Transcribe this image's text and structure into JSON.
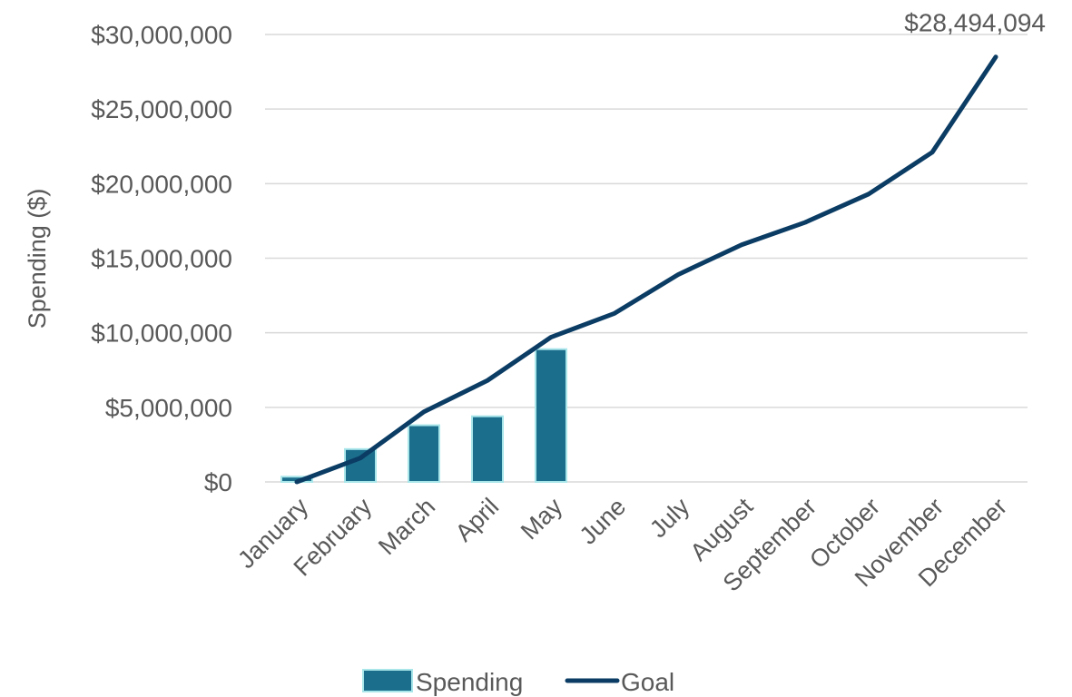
{
  "chart_data": {
    "type": "bar",
    "title": "",
    "xlabel": "",
    "ylabel": "Spending ($)",
    "ylim": [
      0,
      30000000
    ],
    "yticks": [
      {
        "value": 0,
        "label": "$0"
      },
      {
        "value": 5000000,
        "label": "$5,000,000"
      },
      {
        "value": 10000000,
        "label": "$10,000,000"
      },
      {
        "value": 15000000,
        "label": "$15,000,000"
      },
      {
        "value": 20000000,
        "label": "$20,000,000"
      },
      {
        "value": 25000000,
        "label": "$25,000,000"
      },
      {
        "value": 30000000,
        "label": "$30,000,000"
      }
    ],
    "categories": [
      "January",
      "February",
      "March",
      "April",
      "May",
      "June",
      "July",
      "August",
      "September",
      "October",
      "November",
      "December"
    ],
    "series": [
      {
        "name": "Spending",
        "type": "bar",
        "color": "#1b6e8c",
        "border_color": "#a9e6ea",
        "values": [
          350000,
          2200000,
          3800000,
          4400000,
          8900000,
          null,
          null,
          null,
          null,
          null,
          null,
          null
        ]
      },
      {
        "name": "Goal",
        "type": "line",
        "color": "#0b3c64",
        "values": [
          0,
          1600000,
          4700000,
          6800000,
          9700000,
          11300000,
          13900000,
          15900000,
          17400000,
          19300000,
          22100000,
          28494094
        ]
      }
    ],
    "annotations": [
      {
        "series": "Goal",
        "category": "December",
        "label": "$28,494,094"
      }
    ],
    "grid": true,
    "legend": {
      "position": "bottom",
      "entries": [
        {
          "name": "Spending",
          "marker": "bar"
        },
        {
          "name": "Goal",
          "marker": "line"
        }
      ]
    },
    "colors": {
      "axis_text": "#595959",
      "grid": "#d9d9d9",
      "bar": "#1b6e8c",
      "bar_border": "#a9e6ea",
      "line": "#0b3c64"
    }
  }
}
